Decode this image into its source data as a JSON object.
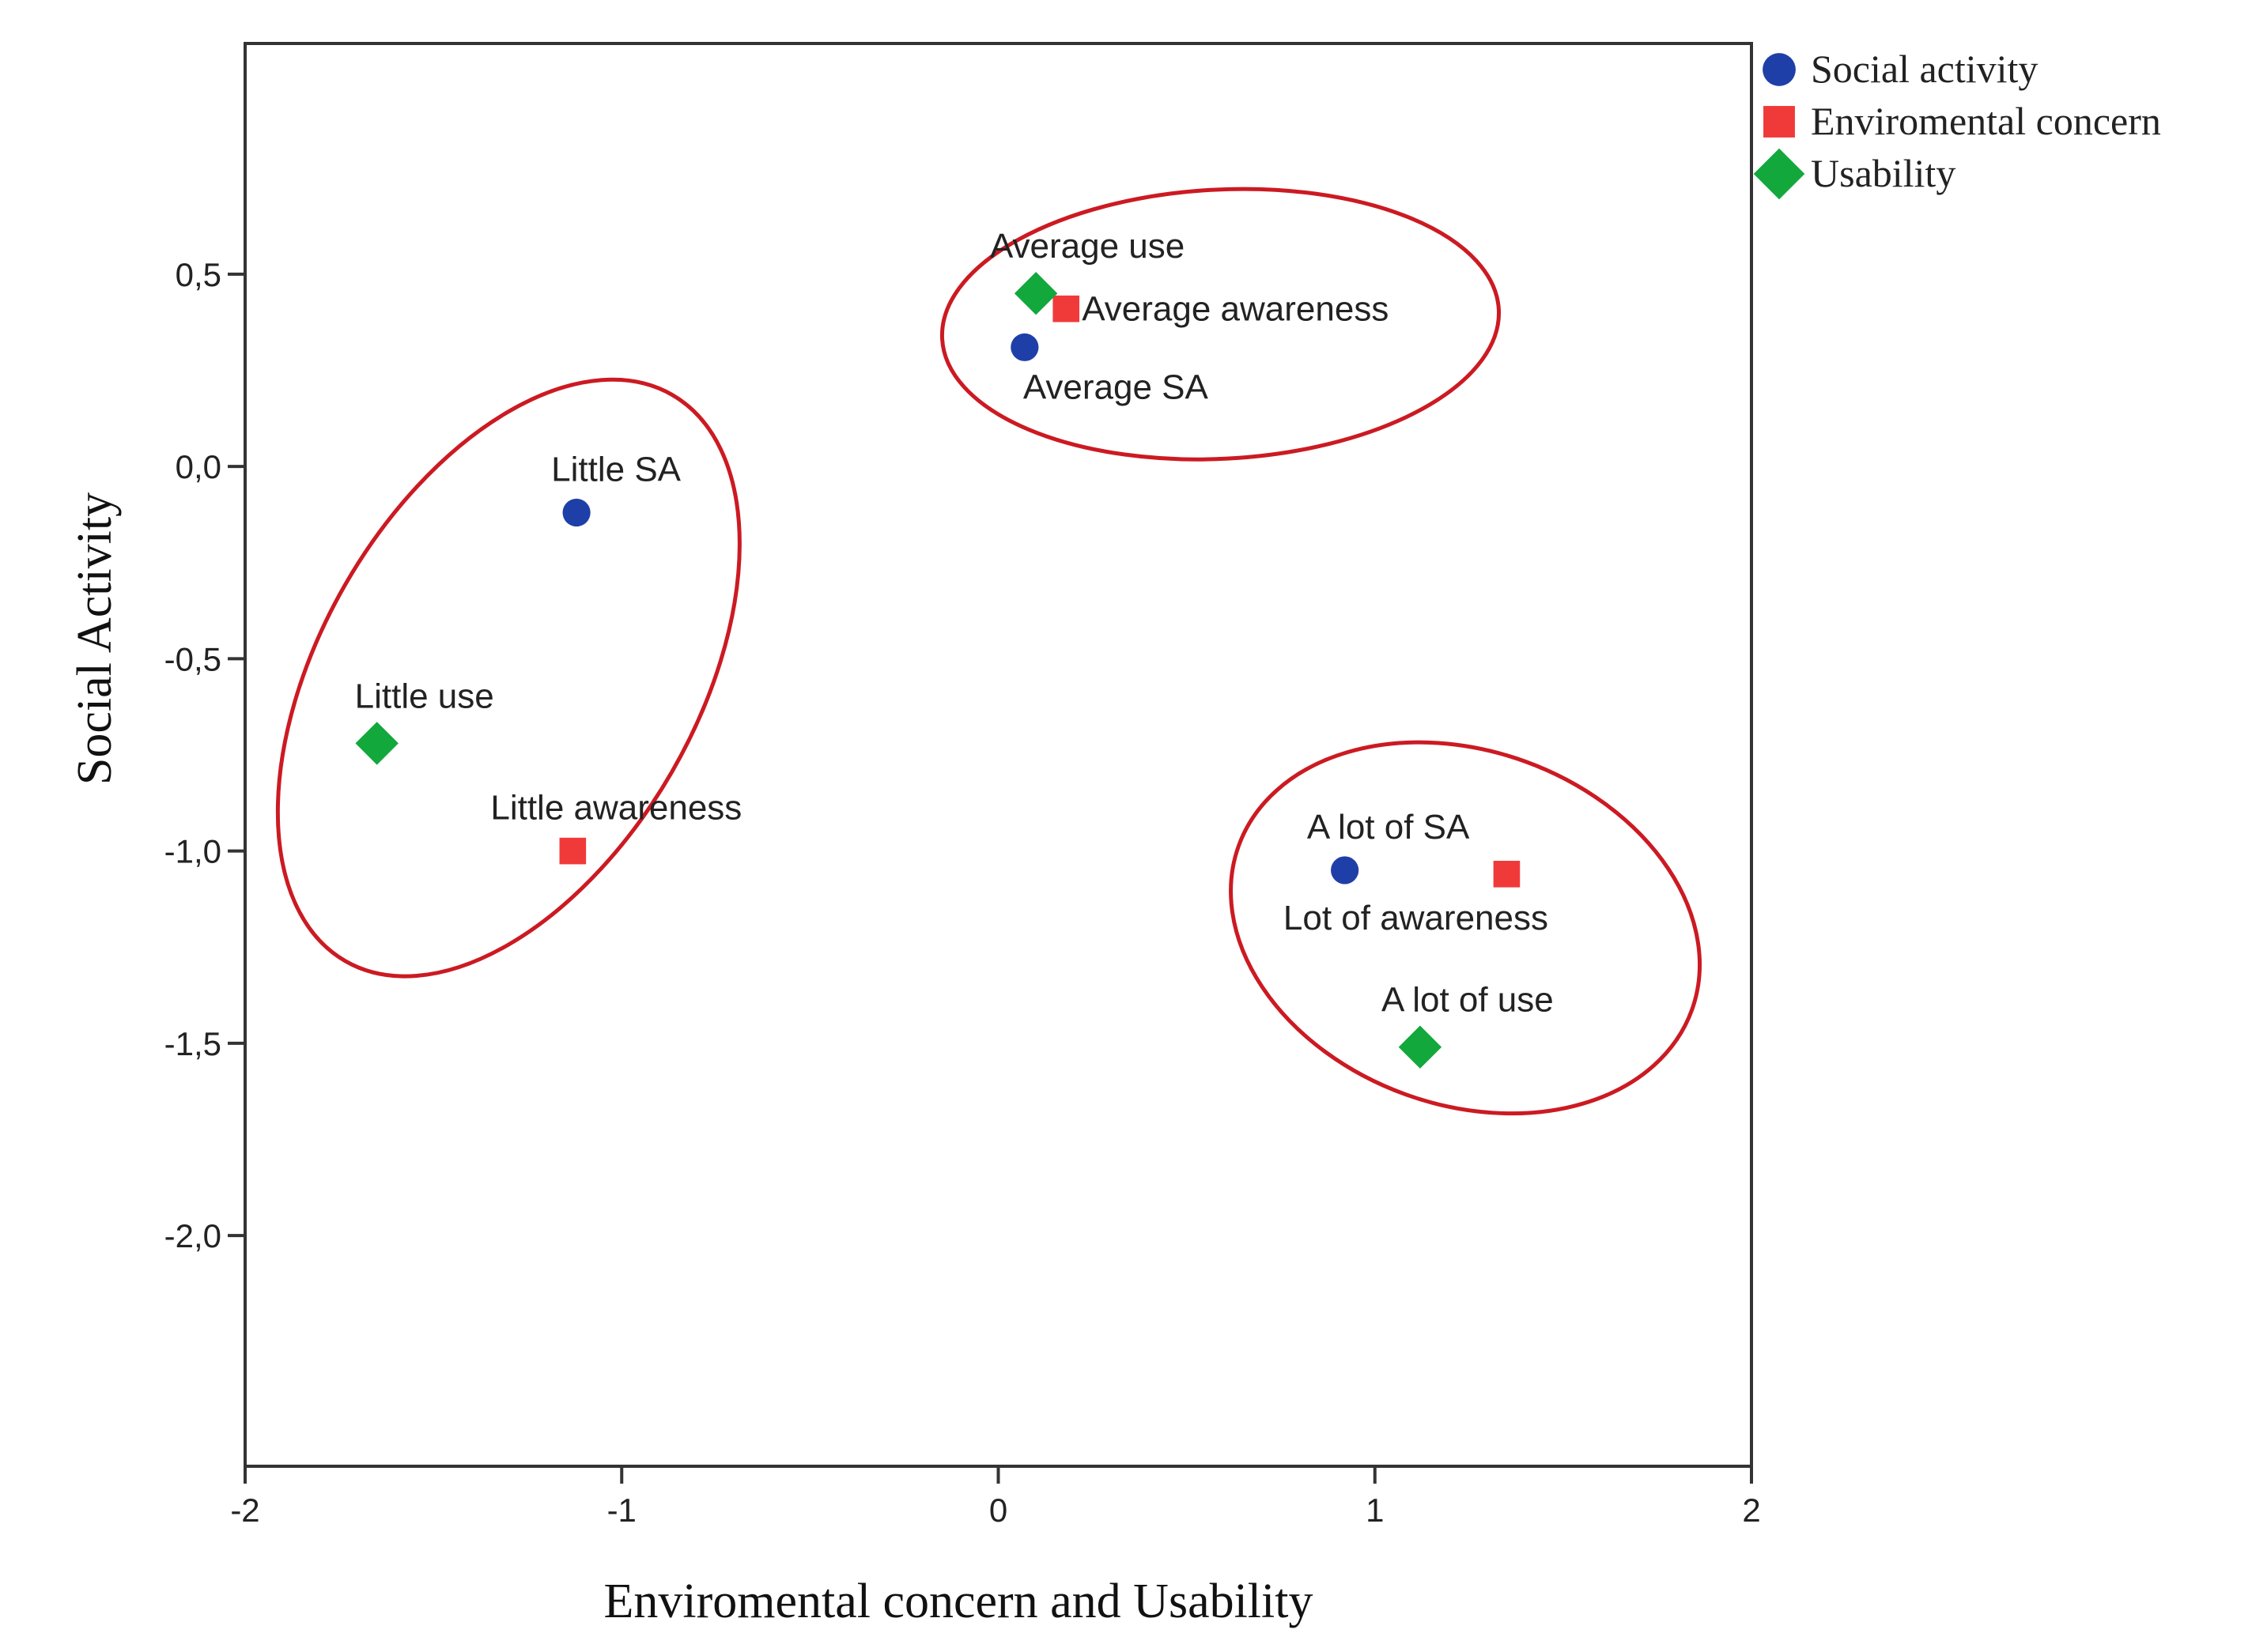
{
  "chart_data": {
    "type": "scatter",
    "title": "",
    "xlabel": "Enviromental concern and Usability",
    "ylabel": "Social Activity",
    "xlim": [
      -2,
      2
    ],
    "ylim": [
      -2.6,
      1.1
    ],
    "x_ticks": [
      -2,
      -1,
      0,
      1,
      2
    ],
    "x_tick_labels": [
      "-2",
      "-1",
      "0",
      "1",
      "2"
    ],
    "y_ticks": [
      0.5,
      0.0,
      -0.5,
      -1.0,
      -1.5,
      -2.0
    ],
    "y_tick_labels": [
      "0,5",
      "0,0",
      "-0,5",
      "-1,0",
      "-1,5",
      "-2,0"
    ],
    "grid": false,
    "legend_position": "top-right, outside plot",
    "series": [
      {
        "name": "Social activity",
        "marker": "circle",
        "color": "#1f3fa8",
        "points": [
          {
            "label": "Little SA",
            "x": -1.12,
            "y": -0.12
          },
          {
            "label": "Average SA",
            "x": 0.07,
            "y": 0.31
          },
          {
            "label": "A lot of SA",
            "x": 0.92,
            "y": -1.05
          }
        ]
      },
      {
        "name": "Enviromental concern",
        "marker": "square",
        "color": "#f03a3a",
        "points": [
          {
            "label": "Little awareness",
            "x": -1.13,
            "y": -1.0
          },
          {
            "label": "Average awareness",
            "x": 0.18,
            "y": 0.41
          },
          {
            "label": "Lot of awareness",
            "x": 1.35,
            "y": -1.06
          }
        ]
      },
      {
        "name": "Usability",
        "marker": "diamond",
        "color": "#12a83c",
        "points": [
          {
            "label": "Little use",
            "x": -1.65,
            "y": -0.72
          },
          {
            "label": "Average use",
            "x": 0.1,
            "y": 0.45
          },
          {
            "label": "A lot of use",
            "x": 1.12,
            "y": -1.51
          }
        ]
      }
    ],
    "clusters": [
      {
        "name": "little",
        "cx": -1.3,
        "cy": -0.55,
        "rx": 0.5,
        "ry": 0.85,
        "rotation_deg": 30
      },
      {
        "name": "average",
        "cx": 0.59,
        "cy": 0.37,
        "rx": 0.74,
        "ry": 0.35,
        "rotation_deg": -3
      },
      {
        "name": "a-lot",
        "cx": 1.24,
        "cy": -1.2,
        "rx": 0.64,
        "ry": 0.46,
        "rotation_deg": 20
      }
    ],
    "ellipse_color": "#cc1a22"
  }
}
